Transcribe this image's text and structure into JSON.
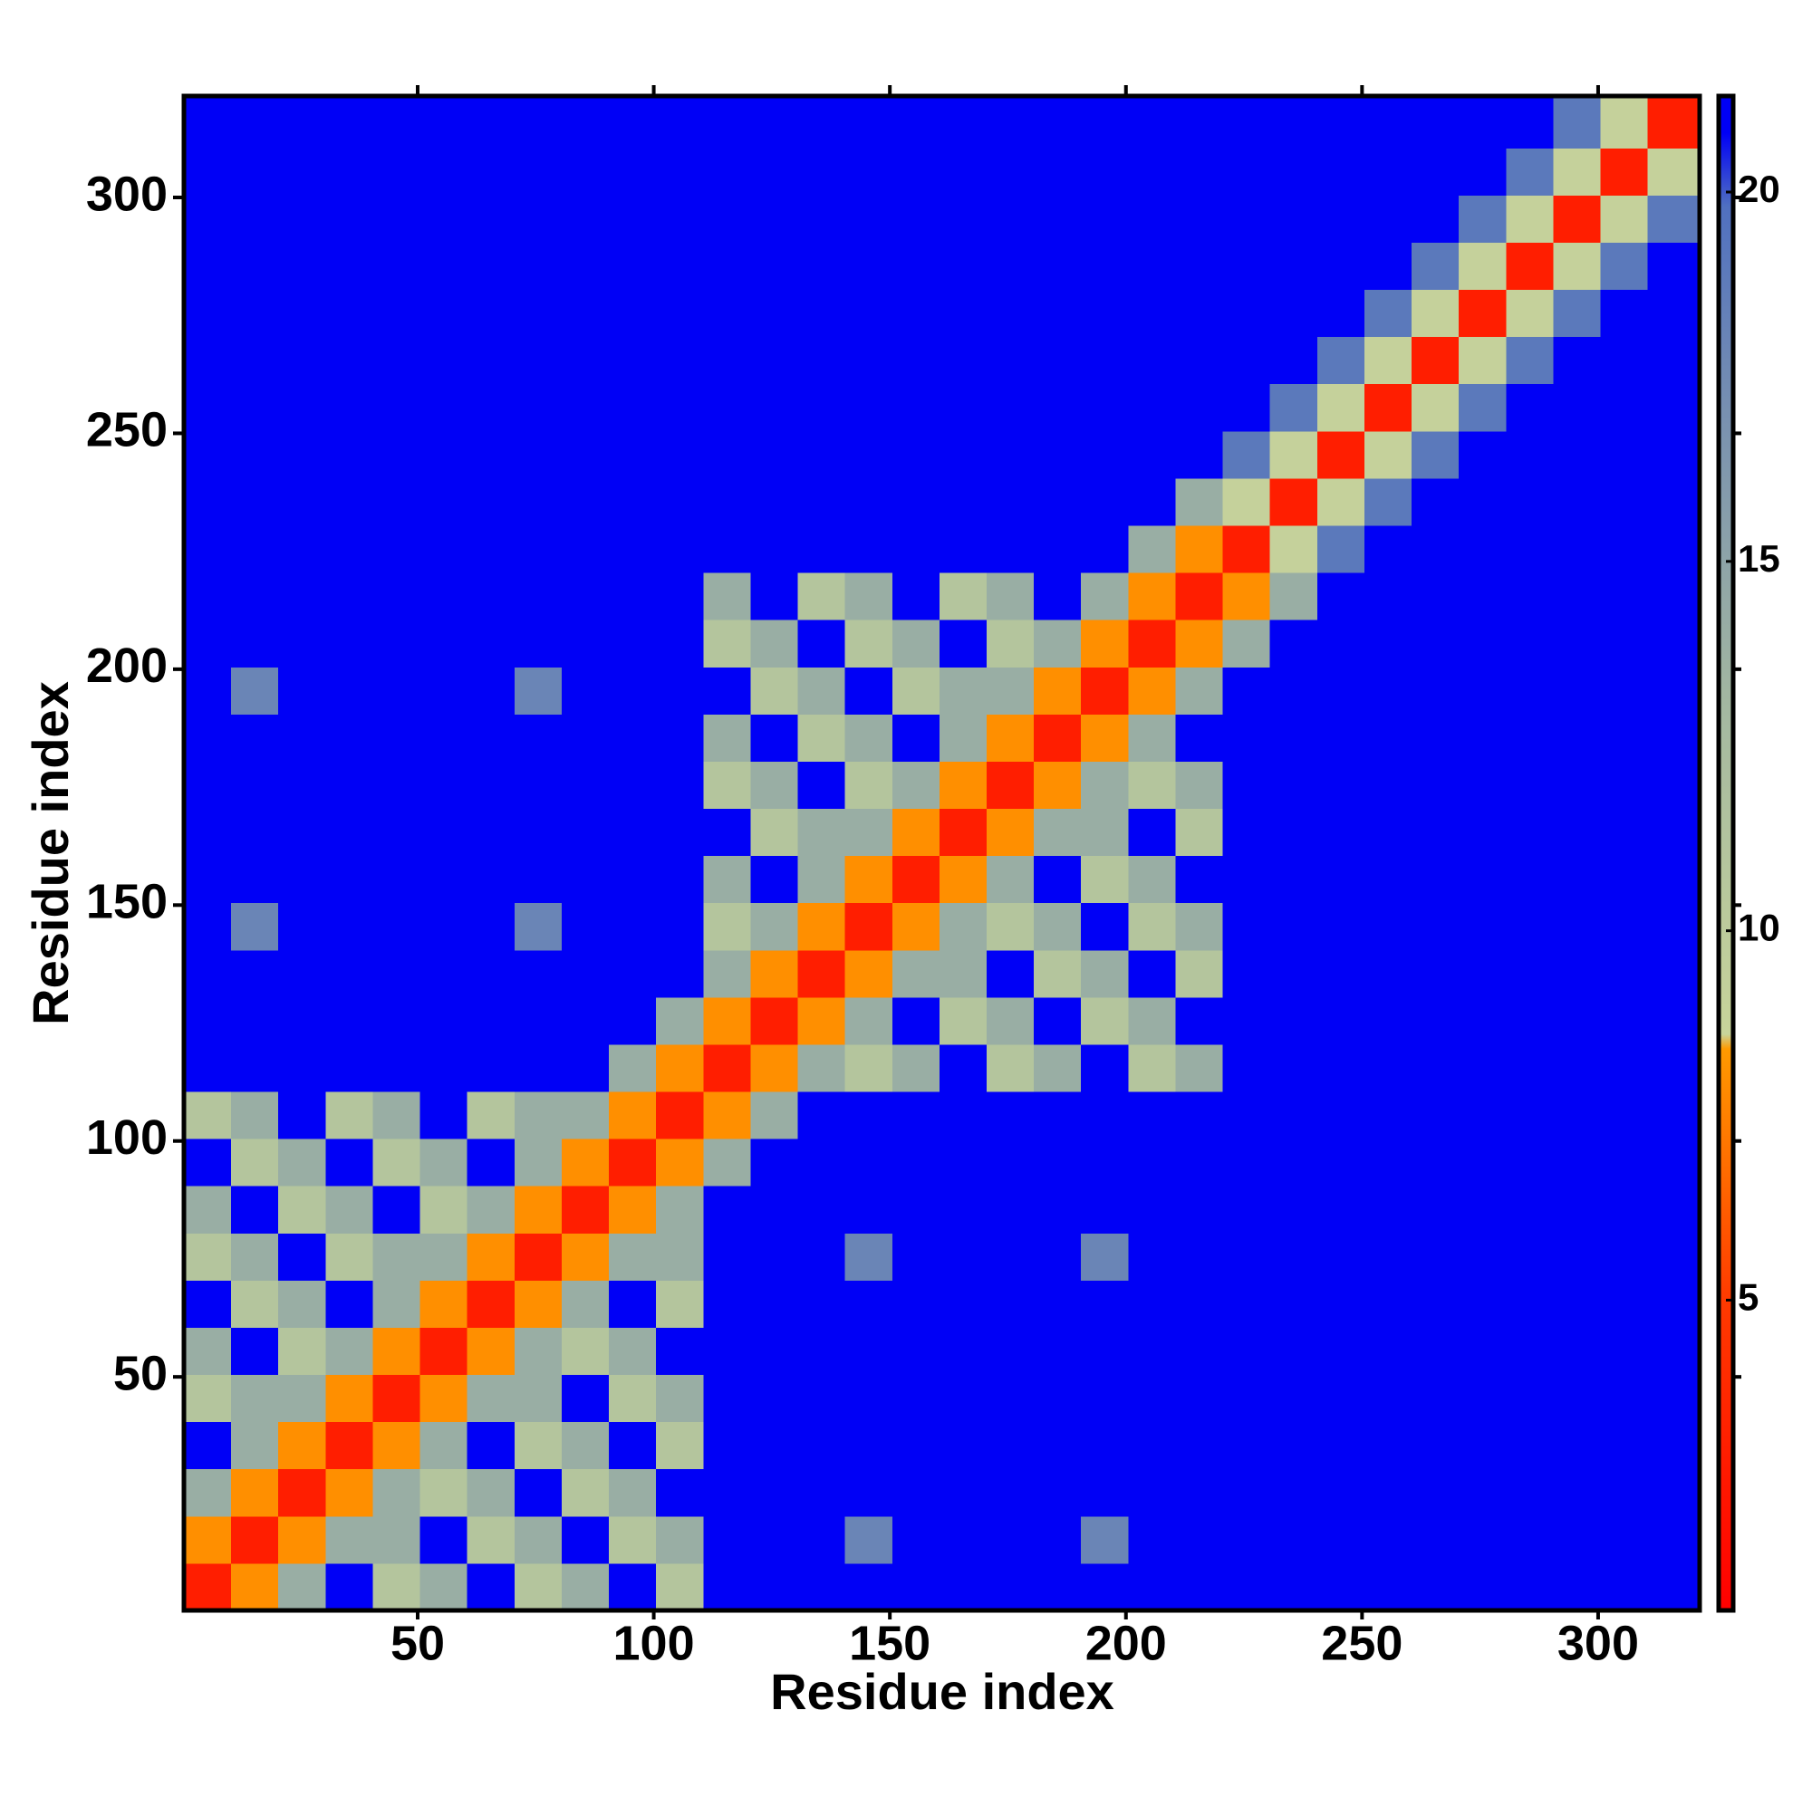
{
  "chart_data": {
    "type": "heatmap",
    "xlabel": "Residue index",
    "ylabel": "Residue index",
    "xlim": [
      0.5,
      321.5
    ],
    "ylim": [
      0.5,
      321.5
    ],
    "xticks": [
      50,
      100,
      150,
      200,
      250,
      300
    ],
    "yticks": [
      50,
      100,
      150,
      200,
      250,
      300
    ],
    "x_edges": [
      0.5,
      10.5,
      20.5,
      30.5,
      40.5,
      50.5,
      60.5,
      70.5,
      80.5,
      90.5,
      100.5,
      110.5,
      120.5,
      130.5,
      140.5,
      150.5,
      160.5,
      170.5,
      180.5,
      190.5,
      200.5,
      210.5,
      220.5,
      230.5,
      240.5,
      250.5,
      260.5,
      270.5,
      280.5,
      290.5,
      300.5,
      310.5,
      321.5
    ],
    "y_edges": [
      0.5,
      10.5,
      20.5,
      30.5,
      40.5,
      50.5,
      60.5,
      70.5,
      80.5,
      90.5,
      100.5,
      110.5,
      120.5,
      130.5,
      140.5,
      150.5,
      160.5,
      170.5,
      180.5,
      190.5,
      200.5,
      210.5,
      220.5,
      230.5,
      240.5,
      250.5,
      260.5,
      270.5,
      280.5,
      290.5,
      300.5,
      310.5,
      321.5
    ],
    "values": [
      [
        3,
        8,
        14,
        21,
        11,
        14,
        21,
        11,
        14,
        21,
        11,
        21,
        21,
        21,
        21,
        21,
        21,
        21,
        21,
        21,
        21,
        21,
        21,
        21,
        21,
        21,
        21,
        21,
        21,
        21,
        21,
        21
      ],
      [
        8,
        3,
        8,
        14,
        14,
        21,
        11,
        14,
        21,
        11,
        14,
        21,
        21,
        21,
        18,
        21,
        21,
        21,
        21,
        18,
        21,
        21,
        21,
        21,
        21,
        21,
        21,
        21,
        21,
        21,
        21,
        21
      ],
      [
        14,
        8,
        3,
        8,
        14,
        11,
        14,
        21,
        11,
        14,
        21,
        21,
        21,
        21,
        21,
        21,
        21,
        21,
        21,
        21,
        21,
        21,
        21,
        21,
        21,
        21,
        21,
        21,
        21,
        21,
        21,
        21
      ],
      [
        21,
        14,
        8,
        3,
        8,
        14,
        21,
        11,
        14,
        21,
        11,
        21,
        21,
        21,
        21,
        21,
        21,
        21,
        21,
        21,
        21,
        21,
        21,
        21,
        21,
        21,
        21,
        21,
        21,
        21,
        21,
        21
      ],
      [
        11,
        14,
        14,
        8,
        3,
        8,
        14,
        14,
        21,
        11,
        14,
        21,
        21,
        21,
        21,
        21,
        21,
        21,
        21,
        21,
        21,
        21,
        21,
        21,
        21,
        21,
        21,
        21,
        21,
        21,
        21,
        21
      ],
      [
        14,
        21,
        11,
        14,
        8,
        3,
        8,
        14,
        11,
        14,
        21,
        21,
        21,
        21,
        21,
        21,
        21,
        21,
        21,
        21,
        21,
        21,
        21,
        21,
        21,
        21,
        21,
        21,
        21,
        21,
        21,
        21
      ],
      [
        21,
        11,
        14,
        21,
        14,
        8,
        3,
        8,
        14,
        21,
        11,
        21,
        21,
        21,
        21,
        21,
        21,
        21,
        21,
        21,
        21,
        21,
        21,
        21,
        21,
        21,
        21,
        21,
        21,
        21,
        21,
        21
      ],
      [
        11,
        14,
        21,
        11,
        14,
        14,
        8,
        3,
        8,
        14,
        14,
        21,
        21,
        21,
        18,
        21,
        21,
        21,
        21,
        18,
        21,
        21,
        21,
        21,
        21,
        21,
        21,
        21,
        21,
        21,
        21,
        21
      ],
      [
        14,
        21,
        11,
        14,
        21,
        11,
        14,
        8,
        3,
        8,
        14,
        21,
        21,
        21,
        21,
        21,
        21,
        21,
        21,
        21,
        21,
        21,
        21,
        21,
        21,
        21,
        21,
        21,
        21,
        21,
        21,
        21
      ],
      [
        21,
        11,
        14,
        21,
        11,
        14,
        21,
        14,
        8,
        3,
        8,
        14,
        21,
        21,
        21,
        21,
        21,
        21,
        21,
        21,
        21,
        21,
        21,
        21,
        21,
        21,
        21,
        21,
        21,
        21,
        21,
        21
      ],
      [
        11,
        14,
        21,
        11,
        14,
        21,
        11,
        14,
        14,
        8,
        3,
        8,
        14,
        21,
        21,
        21,
        21,
        21,
        21,
        21,
        21,
        21,
        21,
        21,
        21,
        21,
        21,
        21,
        21,
        21,
        21,
        21
      ],
      [
        21,
        21,
        21,
        21,
        21,
        21,
        21,
        21,
        21,
        14,
        8,
        3,
        8,
        14,
        11,
        14,
        21,
        11,
        14,
        21,
        11,
        14,
        21,
        21,
        21,
        21,
        21,
        21,
        21,
        21,
        21,
        21
      ],
      [
        21,
        21,
        21,
        21,
        21,
        21,
        21,
        21,
        21,
        21,
        14,
        8,
        3,
        8,
        14,
        21,
        11,
        14,
        21,
        11,
        14,
        21,
        21,
        21,
        21,
        21,
        21,
        21,
        21,
        21,
        21,
        21
      ],
      [
        21,
        21,
        21,
        21,
        21,
        21,
        21,
        21,
        21,
        21,
        21,
        14,
        8,
        3,
        8,
        14,
        14,
        21,
        11,
        14,
        21,
        11,
        21,
        21,
        21,
        21,
        21,
        21,
        21,
        21,
        21,
        21
      ],
      [
        21,
        18,
        21,
        21,
        21,
        21,
        21,
        18,
        21,
        21,
        21,
        11,
        14,
        8,
        3,
        8,
        14,
        11,
        14,
        21,
        11,
        14,
        21,
        21,
        21,
        21,
        21,
        21,
        21,
        21,
        21,
        21
      ],
      [
        21,
        21,
        21,
        21,
        21,
        21,
        21,
        21,
        21,
        21,
        21,
        14,
        21,
        14,
        8,
        3,
        8,
        14,
        21,
        11,
        14,
        21,
        21,
        21,
        21,
        21,
        21,
        21,
        21,
        21,
        21,
        21
      ],
      [
        21,
        21,
        21,
        21,
        21,
        21,
        21,
        21,
        21,
        21,
        21,
        21,
        11,
        14,
        14,
        8,
        3,
        8,
        14,
        14,
        21,
        11,
        21,
        21,
        21,
        21,
        21,
        21,
        21,
        21,
        21,
        21
      ],
      [
        21,
        21,
        21,
        21,
        21,
        21,
        21,
        21,
        21,
        21,
        21,
        11,
        14,
        21,
        11,
        14,
        8,
        3,
        8,
        14,
        11,
        14,
        21,
        21,
        21,
        21,
        21,
        21,
        21,
        21,
        21,
        21
      ],
      [
        21,
        21,
        21,
        21,
        21,
        21,
        21,
        21,
        21,
        21,
        21,
        14,
        21,
        11,
        14,
        21,
        14,
        8,
        3,
        8,
        14,
        21,
        21,
        21,
        21,
        21,
        21,
        21,
        21,
        21,
        21,
        21
      ],
      [
        21,
        18,
        21,
        21,
        21,
        21,
        21,
        18,
        21,
        21,
        21,
        21,
        11,
        14,
        21,
        11,
        14,
        14,
        8,
        3,
        8,
        14,
        21,
        21,
        21,
        21,
        21,
        21,
        21,
        21,
        21,
        21
      ],
      [
        21,
        21,
        21,
        21,
        21,
        21,
        21,
        21,
        21,
        21,
        21,
        11,
        14,
        21,
        11,
        14,
        21,
        11,
        14,
        8,
        3,
        8,
        14,
        21,
        21,
        21,
        21,
        21,
        21,
        21,
        21,
        21
      ],
      [
        21,
        21,
        21,
        21,
        21,
        21,
        21,
        21,
        21,
        21,
        21,
        14,
        21,
        11,
        14,
        21,
        11,
        14,
        21,
        14,
        8,
        3,
        8,
        14,
        21,
        21,
        21,
        21,
        21,
        21,
        21,
        21
      ],
      [
        21,
        21,
        21,
        21,
        21,
        21,
        21,
        21,
        21,
        21,
        21,
        21,
        21,
        21,
        21,
        21,
        21,
        21,
        21,
        21,
        14,
        8,
        3,
        9,
        19,
        21,
        21,
        21,
        21,
        21,
        21,
        21
      ],
      [
        21,
        21,
        21,
        21,
        21,
        21,
        21,
        21,
        21,
        21,
        21,
        21,
        21,
        21,
        21,
        21,
        21,
        21,
        21,
        21,
        21,
        14,
        9,
        3,
        9,
        19,
        21,
        21,
        21,
        21,
        21,
        21
      ],
      [
        21,
        21,
        21,
        21,
        21,
        21,
        21,
        21,
        21,
        21,
        21,
        21,
        21,
        21,
        21,
        21,
        21,
        21,
        21,
        21,
        21,
        21,
        19,
        9,
        3,
        9,
        19,
        21,
        21,
        21,
        21,
        21
      ],
      [
        21,
        21,
        21,
        21,
        21,
        21,
        21,
        21,
        21,
        21,
        21,
        21,
        21,
        21,
        21,
        21,
        21,
        21,
        21,
        21,
        21,
        21,
        21,
        19,
        9,
        3,
        9,
        19,
        21,
        21,
        21,
        21
      ],
      [
        21,
        21,
        21,
        21,
        21,
        21,
        21,
        21,
        21,
        21,
        21,
        21,
        21,
        21,
        21,
        21,
        21,
        21,
        21,
        21,
        21,
        21,
        21,
        21,
        19,
        9,
        3,
        9,
        19,
        21,
        21,
        21
      ],
      [
        21,
        21,
        21,
        21,
        21,
        21,
        21,
        21,
        21,
        21,
        21,
        21,
        21,
        21,
        21,
        21,
        21,
        21,
        21,
        21,
        21,
        21,
        21,
        21,
        21,
        19,
        9,
        3,
        9,
        19,
        21,
        21
      ],
      [
        21,
        21,
        21,
        21,
        21,
        21,
        21,
        21,
        21,
        21,
        21,
        21,
        21,
        21,
        21,
        21,
        21,
        21,
        21,
        21,
        21,
        21,
        21,
        21,
        21,
        21,
        19,
        9,
        3,
        9,
        19,
        21
      ],
      [
        21,
        21,
        21,
        21,
        21,
        21,
        21,
        21,
        21,
        21,
        21,
        21,
        21,
        21,
        21,
        21,
        21,
        21,
        21,
        21,
        21,
        21,
        21,
        21,
        21,
        21,
        21,
        19,
        9,
        3,
        9,
        19
      ],
      [
        21,
        21,
        21,
        21,
        21,
        21,
        21,
        21,
        21,
        21,
        21,
        21,
        21,
        21,
        21,
        21,
        21,
        21,
        21,
        21,
        21,
        21,
        21,
        21,
        21,
        21,
        21,
        21,
        19,
        9,
        3,
        9
      ],
      [
        21,
        21,
        21,
        21,
        21,
        21,
        21,
        21,
        21,
        21,
        21,
        21,
        21,
        21,
        21,
        21,
        21,
        21,
        21,
        21,
        21,
        21,
        21,
        21,
        21,
        21,
        21,
        21,
        21,
        19,
        9,
        3
      ]
    ],
    "colorbar": {
      "lim": [
        0.8,
        21.3
      ],
      "ticks": [
        5,
        10,
        15,
        20
      ],
      "stops": [
        [
          0.8,
          "#ff0000"
        ],
        [
          5,
          "#ff3a00"
        ],
        [
          8.4,
          "#ff9a00"
        ],
        [
          8.6,
          "#c8d49a"
        ],
        [
          13,
          "#a4b8a0"
        ],
        [
          17,
          "#7890b0"
        ],
        [
          19.8,
          "#5070c0"
        ],
        [
          20.8,
          "#0000f6"
        ],
        [
          21.3,
          "#0000f6"
        ]
      ]
    }
  }
}
